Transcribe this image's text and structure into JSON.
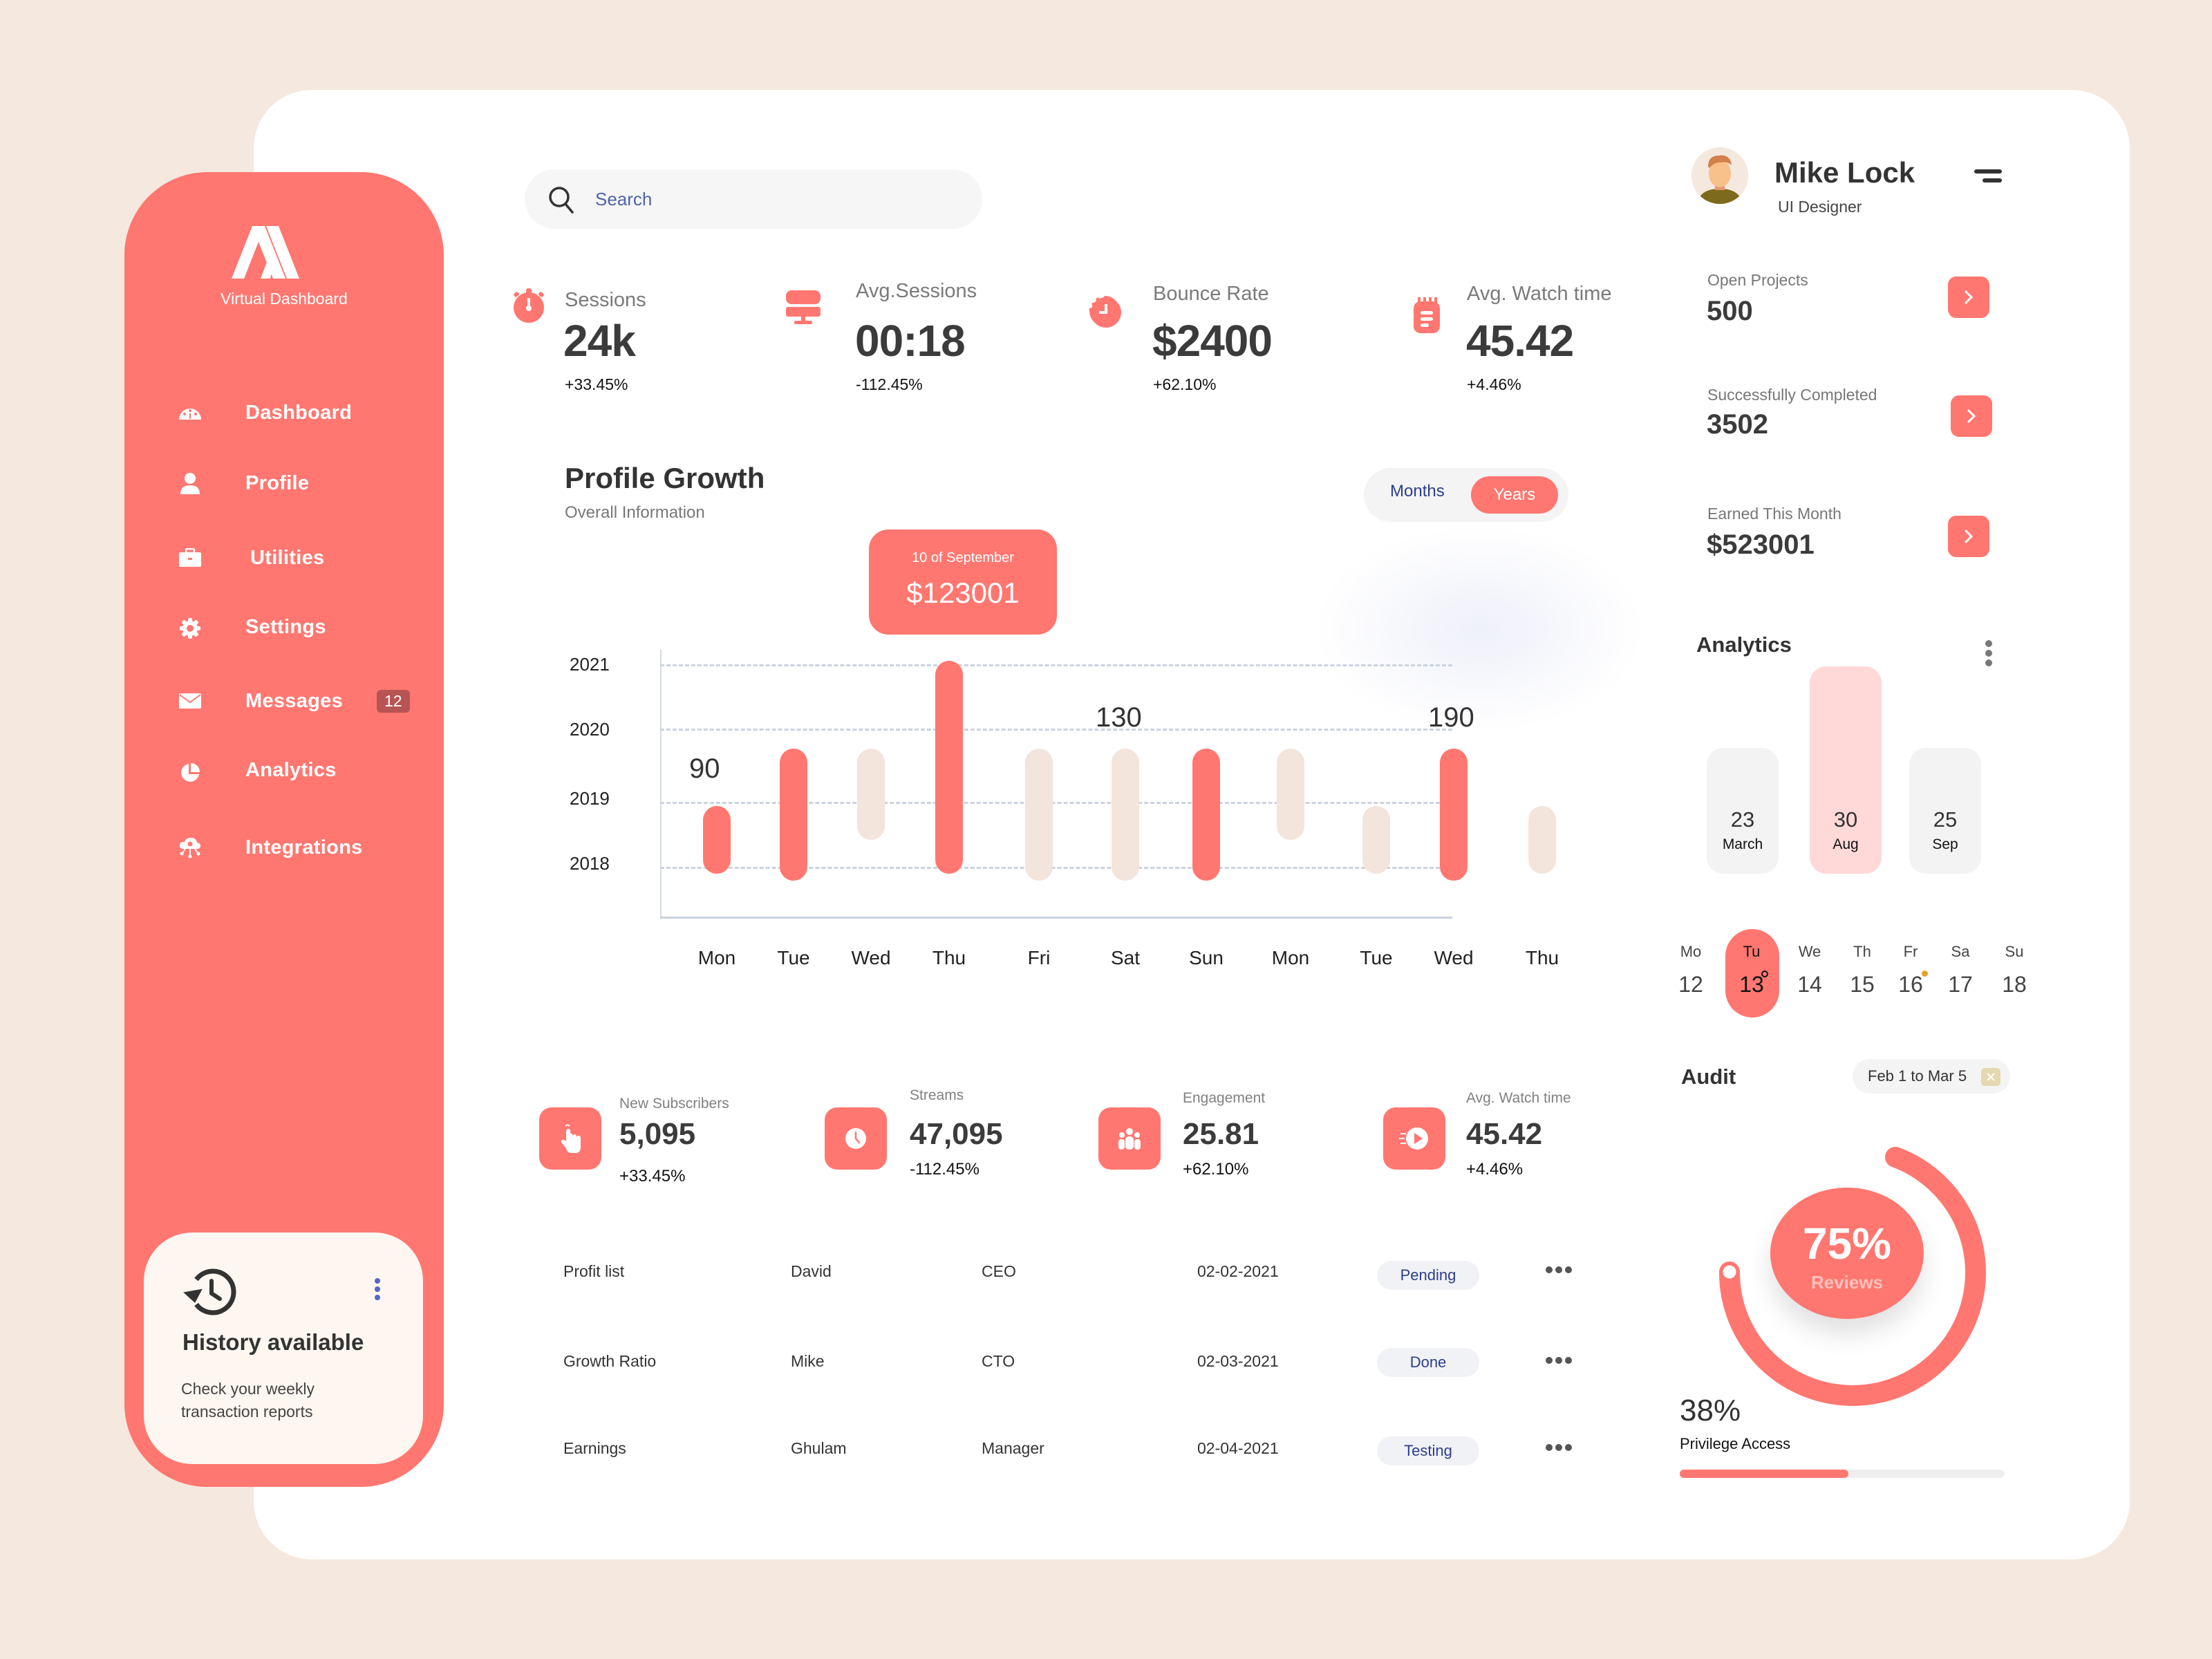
{
  "colors": {
    "accent": "#FF7770",
    "background": "#F4E8DF",
    "bar_muted": "#F3E5DC",
    "analytics_highlight": "#FFD9D8",
    "analytics_muted": "#F3F3F3",
    "badge": "#B85454",
    "link_blue": "#2C3E8C"
  },
  "sidebar": {
    "brand": "Virtual Dashboard",
    "items": [
      {
        "label": "Dashboard",
        "icon": "dashboard-gauge-icon"
      },
      {
        "label": "Profile",
        "icon": "user-icon"
      },
      {
        "label": "Utilities",
        "icon": "briefcase-icon"
      },
      {
        "label": "Settings",
        "icon": "gear-icon"
      },
      {
        "label": "Messages",
        "icon": "mail-icon",
        "badge": "12"
      },
      {
        "label": "Analytics",
        "icon": "pie-chart-icon"
      },
      {
        "label": "Integrations",
        "icon": "cloud-network-icon"
      }
    ],
    "history_card": {
      "title": "History available",
      "description": "Check your weekly transaction reports"
    }
  },
  "search": {
    "placeholder": "Search"
  },
  "top_stats": [
    {
      "label": "Sessions",
      "value": "24k",
      "change": "+33.45%",
      "icon": "stopwatch-icon"
    },
    {
      "label": "Avg.Sessions",
      "value": "00:18",
      "change": "-112.45%",
      "icon": "monitor-icon"
    },
    {
      "label": "Bounce Rate",
      "value": "$2400",
      "change": "+62.10%",
      "icon": "timer-icon"
    },
    {
      "label": "Avg. Watch time",
      "value": "45.42",
      "change": "+4.46%",
      "icon": "notepad-icon"
    }
  ],
  "profile_growth": {
    "title": "Profile Growth",
    "subtitle": "Overall Information",
    "toggle": {
      "months": "Months",
      "years": "Years",
      "selected": "Years"
    },
    "tooltip": {
      "date": "10 of September",
      "value": "$123001"
    }
  },
  "chart_data": {
    "type": "bar",
    "title": "Profile Growth",
    "subtitle": "Overall Information",
    "xlabel": "",
    "ylabel": "",
    "y_ticks": [
      "2018",
      "2019",
      "2020",
      "2021"
    ],
    "categories": [
      "Mon",
      "Tue",
      "Wed",
      "Thu",
      "Fri",
      "Sat",
      "Sun",
      "Mon",
      "Tue",
      "Wed",
      "Thu"
    ],
    "series": [
      {
        "name": "range",
        "bars": [
          {
            "from": 2017.9,
            "to": 2018.9,
            "highlight": true
          },
          {
            "from": 2017.8,
            "to": 2019.75,
            "highlight": true
          },
          {
            "from": 2018.4,
            "to": 2019.75,
            "highlight": false
          },
          {
            "from": 2017.9,
            "to": 2021.05,
            "highlight": true
          },
          {
            "from": 2017.8,
            "to": 2019.75,
            "highlight": false
          },
          {
            "from": 2017.8,
            "to": 2019.75,
            "highlight": false
          },
          {
            "from": 2017.8,
            "to": 2019.75,
            "highlight": true
          },
          {
            "from": 2018.4,
            "to": 2019.75,
            "highlight": false
          },
          {
            "from": 2017.9,
            "to": 2018.9,
            "highlight": false
          },
          {
            "from": 2017.8,
            "to": 2019.75,
            "highlight": true
          },
          {
            "from": 2017.9,
            "to": 2018.9,
            "highlight": false
          }
        ]
      }
    ],
    "annotations": [
      {
        "category_index": 0,
        "text": "90"
      },
      {
        "category_index": 5,
        "text": "130"
      },
      {
        "category_index": 9,
        "text": "190"
      }
    ],
    "tooltip": {
      "category_index": 3,
      "date": "10 of September",
      "value": "$123001"
    },
    "grid": true,
    "ylim": [
      2017.6,
      2021.2
    ]
  },
  "bottom_stats": [
    {
      "label": "New Subscribers",
      "value": "5,095",
      "change": "+33.45%",
      "icon": "hand-pointer-icon"
    },
    {
      "label": "Streams",
      "value": "47,095",
      "change": "-112.45%",
      "icon": "clock-icon"
    },
    {
      "label": "Engagement",
      "value": "25.81",
      "change": "+62.10%",
      "icon": "users-group-icon"
    },
    {
      "label": "Avg. Watch time",
      "value": "45.42",
      "change": "+4.46%",
      "icon": "play-fast-icon"
    }
  ],
  "table": {
    "rows": [
      {
        "name": "Profit list",
        "person": "David",
        "role": "CEO",
        "date": "02-02-2021",
        "status": "Pending"
      },
      {
        "name": "Growth Ratio",
        "person": "Mike",
        "role": "CTO",
        "date": "02-03-2021",
        "status": "Done"
      },
      {
        "name": "Earnings",
        "person": "Ghulam",
        "role": "Manager",
        "date": "02-04-2021",
        "status": "Testing"
      }
    ]
  },
  "user": {
    "name": "Mike Lock",
    "role": "UI Designer"
  },
  "kpis": [
    {
      "label": "Open Projects",
      "value": "500"
    },
    {
      "label": "Successfully Completed",
      "value": "3502"
    },
    {
      "label": "Earned This Month",
      "value": "$523001"
    }
  ],
  "analytics": {
    "title": "Analytics",
    "bars": [
      {
        "value": "23",
        "month": "March",
        "highlight": false
      },
      {
        "value": "30",
        "month": "Aug",
        "highlight": true
      },
      {
        "value": "25",
        "month": "Sep",
        "highlight": false
      }
    ]
  },
  "calendar": {
    "days": [
      {
        "dow": "Mo",
        "num": "12"
      },
      {
        "dow": "Tu",
        "num": "13",
        "selected": true
      },
      {
        "dow": "We",
        "num": "14"
      },
      {
        "dow": "Th",
        "num": "15"
      },
      {
        "dow": "Fr",
        "num": "16",
        "event_dot": true
      },
      {
        "dow": "Sa",
        "num": "17"
      },
      {
        "dow": "Su",
        "num": "18"
      }
    ]
  },
  "audit": {
    "title": "Audit",
    "date_range": "Feb 1 to Mar 5",
    "reviews_pct": "75%",
    "reviews_label": "Reviews",
    "privilege_pct": "38%",
    "privilege_label": "Privilege Access",
    "privilege_progress": 52
  }
}
